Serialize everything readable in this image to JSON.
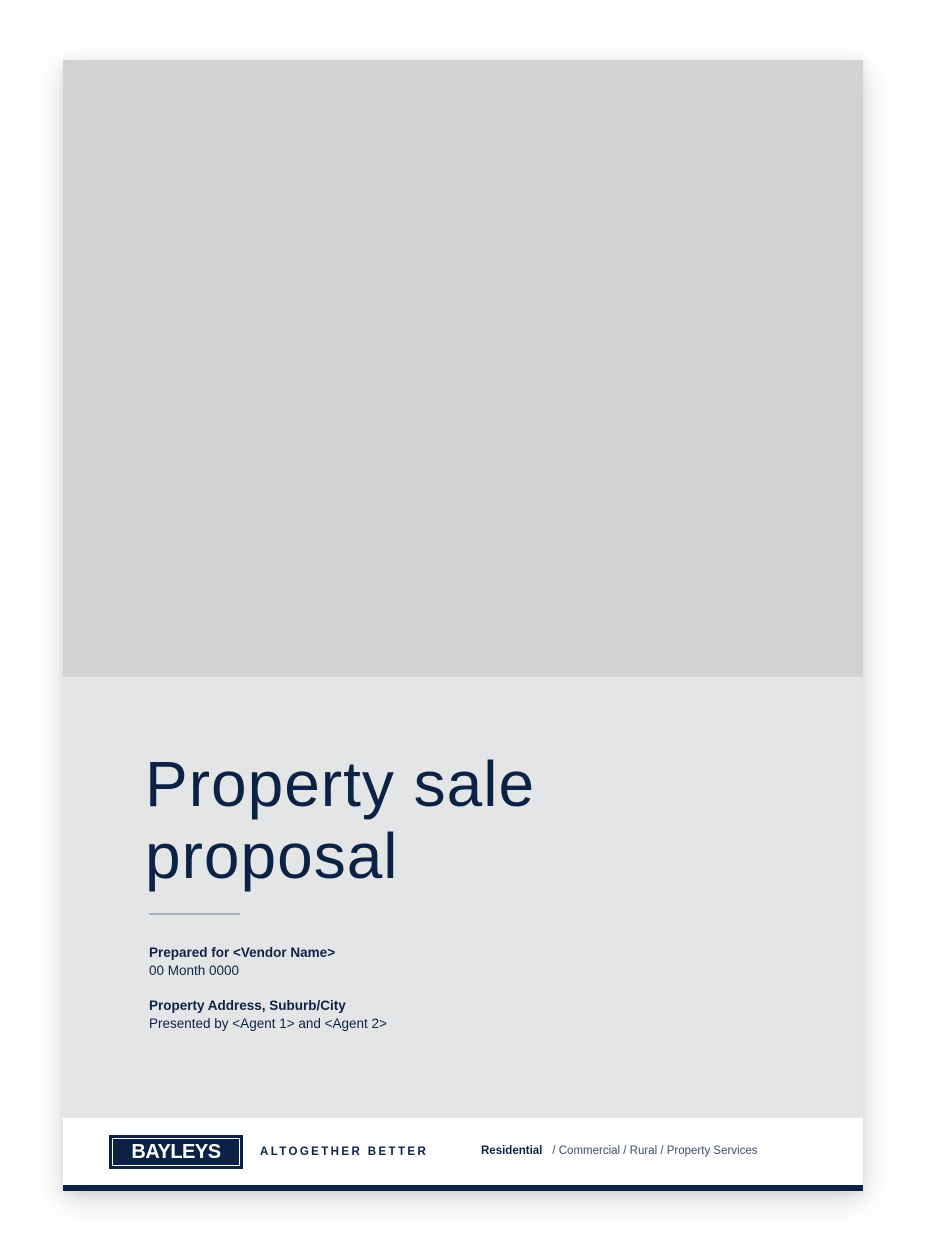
{
  "cover": {
    "title_line1": "Property sale",
    "title_line2": "proposal",
    "prepared_for": "Prepared for <Vendor Name>",
    "date": "00 Month 0000",
    "address": "Property Address, Suburb/City",
    "presented_by": "Presented by <Agent 1> and <Agent 2>"
  },
  "footer": {
    "logo": "BAYLEYS",
    "tagline": "ALTOGETHER BETTER",
    "divisions": {
      "active": "Residential",
      "rest": "/ Commercial / Rural / Property Services"
    }
  },
  "colors": {
    "navy": "#0b2245",
    "image_placeholder": "#d1d2d4",
    "panel_background": "#e4e5e7",
    "rule": "#a9b2c0"
  }
}
